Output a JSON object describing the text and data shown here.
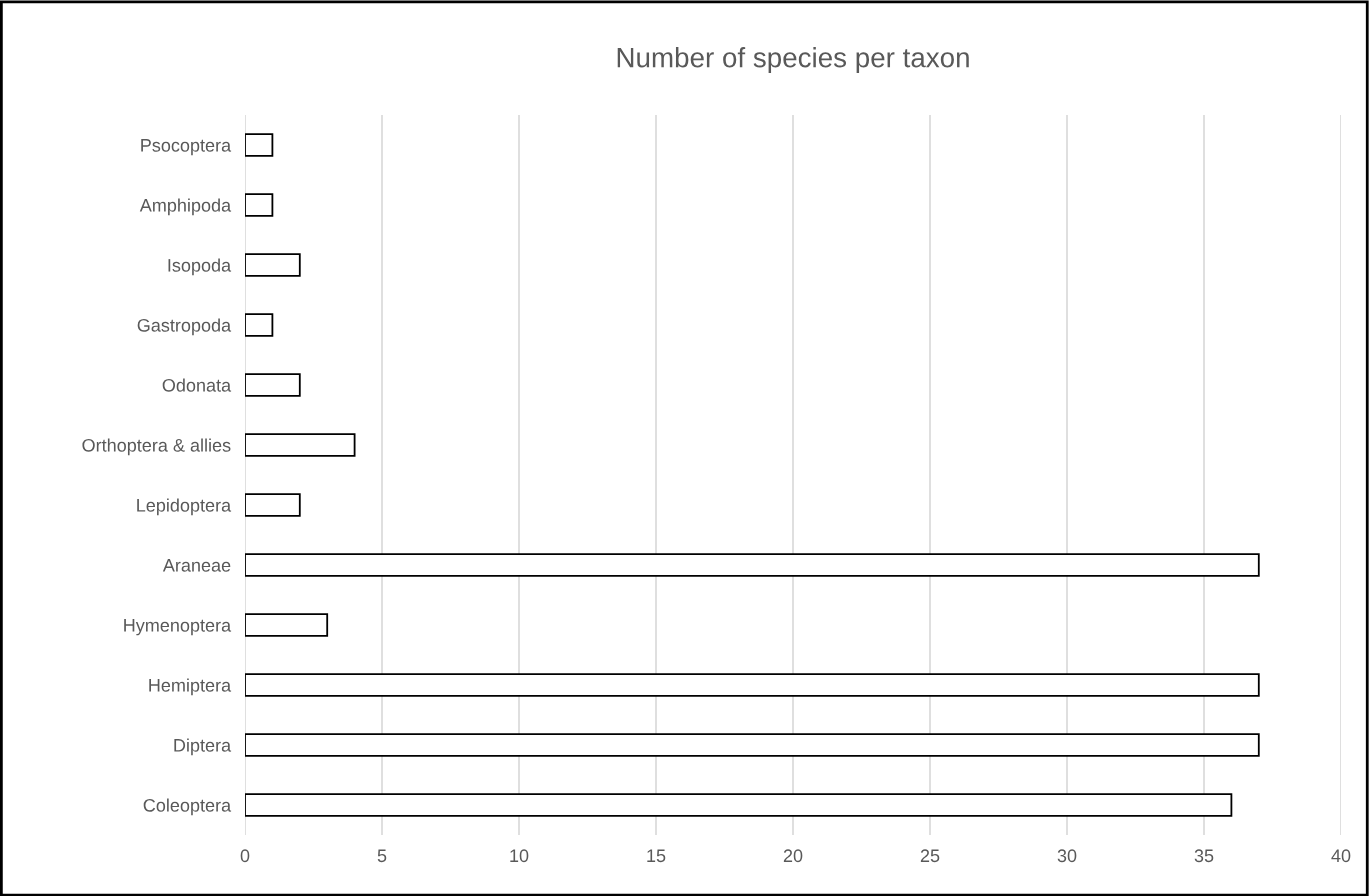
{
  "chart_data": {
    "type": "bar",
    "orientation": "horizontal",
    "title": "Number of species per taxon",
    "categories": [
      "Psocoptera",
      "Amphipoda",
      "Isopoda",
      "Gastropoda",
      "Odonata",
      "Orthoptera & allies",
      "Lepidoptera",
      "Araneae",
      "Hymenoptera",
      "Hemiptera",
      "Diptera",
      "Coleoptera"
    ],
    "values": [
      1,
      1,
      2,
      1,
      2,
      4,
      2,
      37,
      3,
      37,
      37,
      36
    ],
    "color": "#ffffff",
    "xlim": [
      0,
      40
    ],
    "xticks": [
      0,
      5,
      10,
      15,
      20,
      25,
      30,
      35,
      40
    ],
    "grid": "x"
  }
}
